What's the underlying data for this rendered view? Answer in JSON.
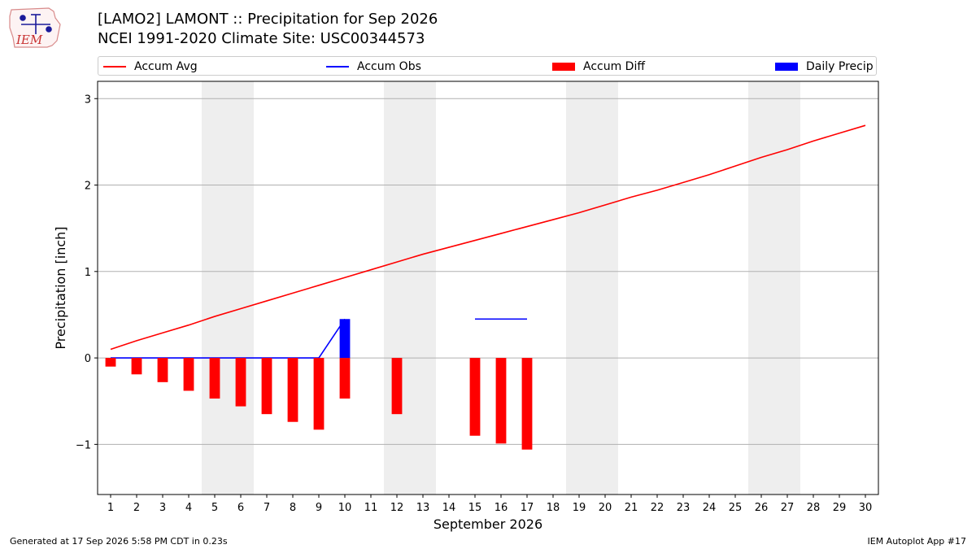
{
  "header": {
    "logo_text": "IEM",
    "title_line1": "[LAMO2] LAMONT :: Precipitation for Sep 2026",
    "title_line2": "NCEI 1991-2020 Climate Site: USC00344573"
  },
  "legend": {
    "items": [
      {
        "label": "Accum Avg",
        "kind": "line",
        "color": "#ff0000"
      },
      {
        "label": "Accum Obs",
        "kind": "line",
        "color": "#0000ff"
      },
      {
        "label": "Accum Diff",
        "kind": "bar",
        "color": "#ff0000"
      },
      {
        "label": "Daily Precip",
        "kind": "bar",
        "color": "#0000ff"
      }
    ]
  },
  "chart_data": {
    "type": "bar",
    "xlabel": "September 2026",
    "ylabel": "Precipitation [inch]",
    "xlim": [
      0.5,
      30.5
    ],
    "ylim": [
      -1.58,
      3.2
    ],
    "yticks": [
      -1,
      0,
      1,
      2,
      3
    ],
    "ytick_labels": [
      "−1",
      "0",
      "1",
      "2",
      "3"
    ],
    "x": [
      1,
      2,
      3,
      4,
      5,
      6,
      7,
      8,
      9,
      10,
      11,
      12,
      13,
      14,
      15,
      16,
      17,
      18,
      19,
      20,
      21,
      22,
      23,
      24,
      25,
      26,
      27,
      28,
      29,
      30
    ],
    "weekend_shading": [
      [
        4.5,
        6.5
      ],
      [
        11.5,
        13.5
      ],
      [
        18.5,
        20.5
      ],
      [
        25.5,
        27.5
      ]
    ],
    "grid": "horizontal",
    "series": [
      {
        "name": "Accum Avg",
        "kind": "line",
        "color": "#ff0000",
        "x": [
          1,
          2,
          3,
          4,
          5,
          6,
          7,
          8,
          9,
          10,
          11,
          12,
          13,
          14,
          15,
          16,
          17,
          18,
          19,
          20,
          21,
          22,
          23,
          24,
          25,
          26,
          27,
          28,
          29,
          30
        ],
        "values": [
          0.1,
          0.2,
          0.29,
          0.38,
          0.48,
          0.57,
          0.66,
          0.75,
          0.84,
          0.93,
          1.02,
          1.11,
          1.2,
          1.28,
          1.36,
          1.44,
          1.52,
          1.6,
          1.68,
          1.77,
          1.86,
          1.94,
          2.03,
          2.12,
          2.22,
          2.32,
          2.41,
          2.51,
          2.6,
          2.69
        ]
      },
      {
        "name": "Accum Obs",
        "kind": "line",
        "color": "#0000ff",
        "segments": [
          {
            "x": [
              1,
              2,
              3,
              4,
              5,
              6,
              7,
              8,
              9,
              10
            ],
            "values": [
              0,
              0,
              0,
              0,
              0,
              0,
              0,
              0,
              0,
              0.45
            ]
          },
          {
            "x": [
              15,
              16,
              17
            ],
            "values": [
              0.45,
              0.45,
              0.45
            ]
          }
        ]
      },
      {
        "name": "Accum Diff",
        "kind": "bar",
        "color": "#ff0000",
        "x": [
          1,
          2,
          3,
          4,
          5,
          6,
          7,
          8,
          9,
          10,
          12,
          15,
          16,
          17
        ],
        "values": [
          -0.1,
          -0.19,
          -0.28,
          -0.38,
          -0.47,
          -0.56,
          -0.65,
          -0.74,
          -0.83,
          -0.47,
          -0.65,
          -0.9,
          -0.99,
          -1.06
        ]
      },
      {
        "name": "Daily Precip",
        "kind": "bar",
        "color": "#0000ff",
        "x": [
          10
        ],
        "values": [
          0.45
        ]
      }
    ]
  },
  "footer": {
    "generated": "Generated at 17 Sep 2026 5:58 PM CDT in 0.23s",
    "app": "IEM Autoplot App #17"
  }
}
